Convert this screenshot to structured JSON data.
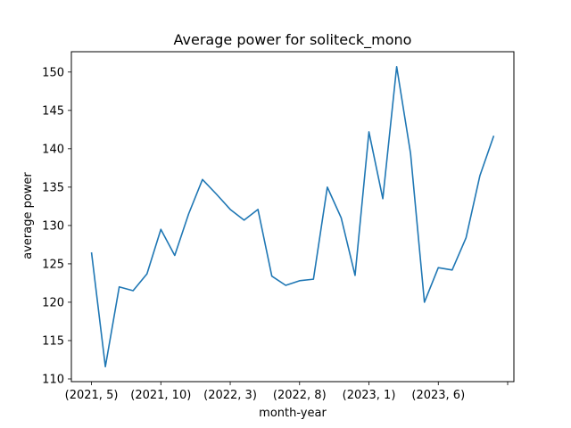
{
  "chart_data": {
    "type": "line",
    "title": "Average power for soliteck_mono",
    "xlabel": "month-year",
    "ylabel": "average power",
    "x": [
      "(2021, 5)",
      "(2021, 6)",
      "(2021, 7)",
      "(2021, 8)",
      "(2021, 9)",
      "(2021, 10)",
      "(2021, 11)",
      "(2021, 12)",
      "(2022, 1)",
      "(2022, 2)",
      "(2022, 3)",
      "(2022, 4)",
      "(2022, 5)",
      "(2022, 6)",
      "(2022, 7)",
      "(2022, 8)",
      "(2022, 9)",
      "(2022, 10)",
      "(2022, 11)",
      "(2022, 12)",
      "(2023, 1)",
      "(2023, 2)",
      "(2023, 3)",
      "(2023, 4)",
      "(2023, 5)",
      "(2023, 6)",
      "(2023, 7)",
      "(2023, 8)",
      "(2023, 9)",
      "(2023, 10)"
    ],
    "series": [
      {
        "name": "",
        "color": "#1f77b4",
        "values": [
          126.5,
          111.6,
          122.0,
          121.5,
          123.7,
          129.5,
          126.1,
          131.5,
          136.0,
          134.1,
          132.1,
          130.7,
          132.1,
          123.4,
          122.2,
          122.8,
          123.0,
          135.0,
          131.0,
          123.5,
          142.2,
          133.5,
          150.7,
          139.4,
          120.0,
          124.5,
          124.2,
          128.4,
          136.5,
          141.7
        ]
      }
    ],
    "x_ticks": [
      {
        "index": 0,
        "label": "(2021, 5)"
      },
      {
        "index": 5,
        "label": "(2021, 10)"
      },
      {
        "index": 10,
        "label": "(2022, 3)"
      },
      {
        "index": 15,
        "label": "(2022, 8)"
      },
      {
        "index": 20,
        "label": "(2023, 1)"
      },
      {
        "index": 25,
        "label": "(2023, 6)"
      },
      {
        "index": 30,
        "label": ""
      }
    ],
    "y_ticks": [
      110,
      115,
      120,
      125,
      130,
      135,
      140,
      145,
      150
    ],
    "xlim": [
      -1.45,
      30.45
    ],
    "ylim": [
      109.65,
      152.65
    ],
    "grid": false,
    "legend": "none"
  }
}
